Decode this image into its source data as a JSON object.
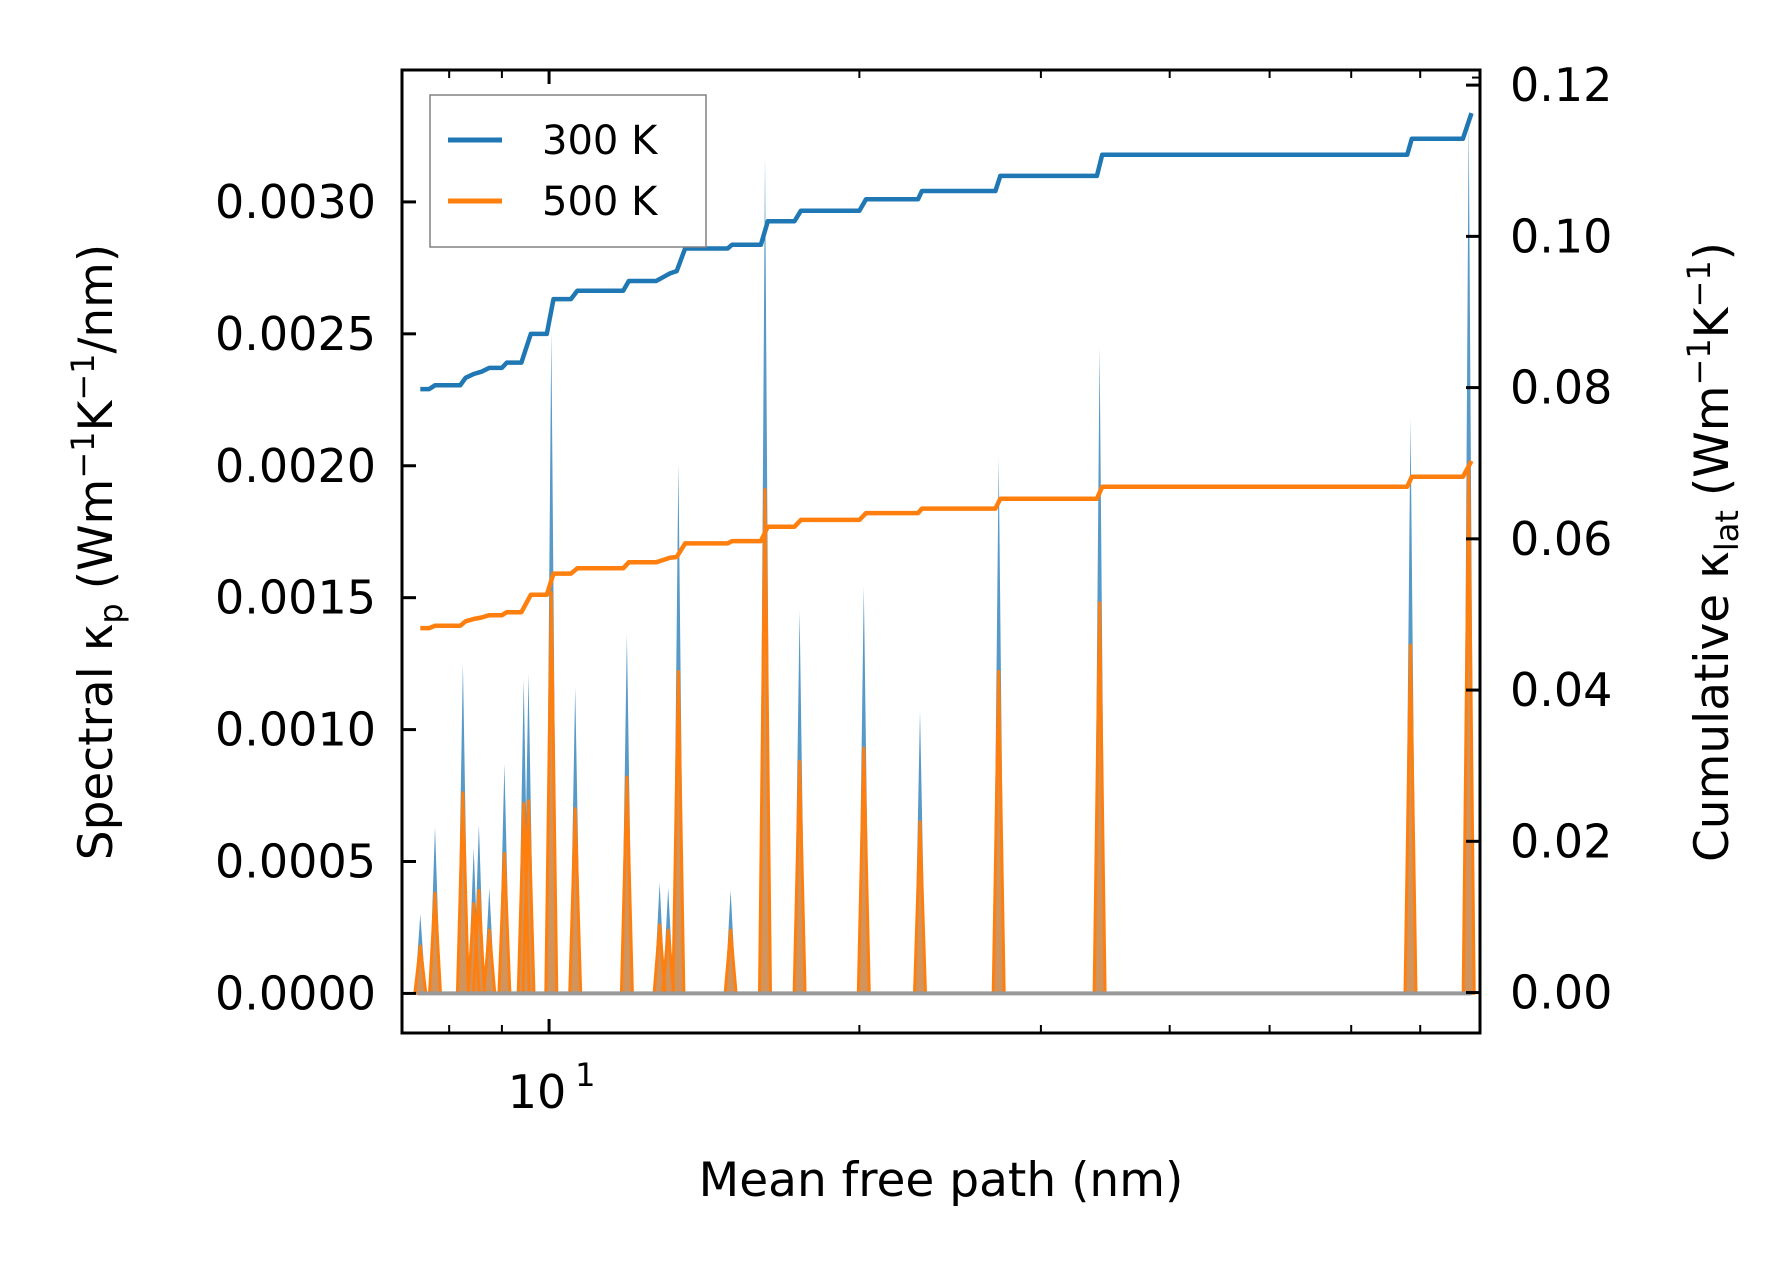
{
  "chart_data": {
    "type": "line",
    "xscale": "log",
    "xlabel": "Mean free path (nm)",
    "xlim": [
      7.2,
      80
    ],
    "x_tick_labels": [
      {
        "value": 10,
        "label": "10",
        "exponent": "1"
      }
    ],
    "ylabel_left": {
      "prefix": "Spectral κ",
      "subscript": "p",
      "units": "(Wm",
      "sup1": "−1",
      "mid": "K",
      "sup2": "−1",
      "suffix": "/nm)"
    },
    "ylabel_right": {
      "prefix": "Cumulative κ",
      "subscript": "lat",
      "units": "(Wm",
      "sup1": "−1",
      "mid": "K",
      "sup2": "−1",
      "suffix": ")"
    },
    "ylim_left": [
      -0.00015,
      0.0035
    ],
    "ylim_right": [
      -0.00535,
      0.122
    ],
    "left_ticks": [
      0.0,
      0.0005,
      0.001,
      0.0015,
      0.002,
      0.0025,
      0.003
    ],
    "left_tick_labels": [
      "0.0000",
      "0.0005",
      "0.0010",
      "0.0015",
      "0.0020",
      "0.0025",
      "0.0030"
    ],
    "right_ticks": [
      0.0,
      0.02,
      0.04,
      0.06,
      0.08,
      0.1,
      0.12
    ],
    "right_tick_labels": [
      "0.00",
      "0.02",
      "0.04",
      "0.06",
      "0.08",
      "0.10",
      "0.12"
    ],
    "legend": {
      "position": "top-left",
      "entries": [
        "300 K",
        "500 K"
      ]
    },
    "colors": {
      "300 K": "#1f77b4",
      "500 K": "#ff7f0e",
      "fill_300": "#1f77b4",
      "fill_500": "#e8934a"
    },
    "spectral_peaks": [
      {
        "x": 7.5,
        "v300": 0.0003,
        "v500": 0.00018
      },
      {
        "x": 7.75,
        "v300": 0.00063,
        "v500": 0.00038
      },
      {
        "x": 8.25,
        "v300": 0.00125,
        "v500": 0.00076
      },
      {
        "x": 8.45,
        "v300": 0.00055,
        "v500": 0.00034
      },
      {
        "x": 8.55,
        "v300": 0.00064,
        "v500": 0.00039
      },
      {
        "x": 8.75,
        "v300": 0.0004,
        "v500": 0.00024
      },
      {
        "x": 9.05,
        "v300": 0.00087,
        "v500": 0.00053
      },
      {
        "x": 9.45,
        "v300": 0.00119,
        "v500": 0.00072
      },
      {
        "x": 9.55,
        "v300": 0.00121,
        "v500": 0.00073
      },
      {
        "x": 10.05,
        "v300": 0.00251,
        "v500": 0.00152
      },
      {
        "x": 10.6,
        "v300": 0.00116,
        "v500": 0.0007
      },
      {
        "x": 11.9,
        "v300": 0.00136,
        "v500": 0.00082
      },
      {
        "x": 12.8,
        "v300": 0.00042,
        "v500": 0.00026
      },
      {
        "x": 13.05,
        "v300": 0.0004,
        "v500": 0.00024
      },
      {
        "x": 13.35,
        "v300": 0.00201,
        "v500": 0.00122
      },
      {
        "x": 15.0,
        "v300": 0.00039,
        "v500": 0.00024
      },
      {
        "x": 16.2,
        "v300": 0.00317,
        "v500": 0.00191
      },
      {
        "x": 17.5,
        "v300": 0.00145,
        "v500": 0.00088
      },
      {
        "x": 20.2,
        "v300": 0.00154,
        "v500": 0.00093
      },
      {
        "x": 22.9,
        "v300": 0.00107,
        "v500": 0.00065
      },
      {
        "x": 27.3,
        "v300": 0.00203,
        "v500": 0.00122
      },
      {
        "x": 34.2,
        "v300": 0.00245,
        "v500": 0.00148
      },
      {
        "x": 68.5,
        "v300": 0.00218,
        "v500": 0.00132
      },
      {
        "x": 78.0,
        "v300": 0.00332,
        "v500": 0.002
      }
    ],
    "cumulative": {
      "300 K": [
        [
          7.5,
          0.0798
        ],
        [
          7.65,
          0.0798
        ],
        [
          7.75,
          0.0803
        ],
        [
          8.2,
          0.0803
        ],
        [
          8.3,
          0.0813
        ],
        [
          8.45,
          0.0818
        ],
        [
          8.6,
          0.0821
        ],
        [
          8.75,
          0.0826
        ],
        [
          9.0,
          0.0826
        ],
        [
          9.1,
          0.0833
        ],
        [
          9.4,
          0.0833
        ],
        [
          9.6,
          0.0871
        ],
        [
          9.95,
          0.0871
        ],
        [
          10.1,
          0.0917
        ],
        [
          10.5,
          0.0917
        ],
        [
          10.65,
          0.0928
        ],
        [
          11.8,
          0.0928
        ],
        [
          11.95,
          0.0941
        ],
        [
          12.7,
          0.0941
        ],
        [
          12.9,
          0.0946
        ],
        [
          13.1,
          0.0951
        ],
        [
          13.3,
          0.0954
        ],
        [
          13.55,
          0.0984
        ],
        [
          14.9,
          0.0984
        ],
        [
          15.05,
          0.0989
        ],
        [
          16.05,
          0.0989
        ],
        [
          16.3,
          0.102
        ],
        [
          17.3,
          0.102
        ],
        [
          17.55,
          0.1034
        ],
        [
          20.0,
          0.1034
        ],
        [
          20.3,
          0.1049
        ],
        [
          22.8,
          0.1049
        ],
        [
          23.0,
          0.106
        ],
        [
          27.1,
          0.106
        ],
        [
          27.4,
          0.108
        ],
        [
          34.0,
          0.108
        ],
        [
          34.4,
          0.1108
        ],
        [
          68.0,
          0.1108
        ],
        [
          68.7,
          0.1129
        ],
        [
          77.0,
          0.1129
        ],
        [
          78.5,
          0.1163
        ]
      ],
      "500 K": [
        [
          7.5,
          0.0482
        ],
        [
          7.65,
          0.0482
        ],
        [
          7.75,
          0.0485
        ],
        [
          8.2,
          0.0485
        ],
        [
          8.3,
          0.0491
        ],
        [
          8.45,
          0.0494
        ],
        [
          8.6,
          0.0496
        ],
        [
          8.75,
          0.0499
        ],
        [
          9.0,
          0.0499
        ],
        [
          9.1,
          0.0503
        ],
        [
          9.4,
          0.0503
        ],
        [
          9.6,
          0.0526
        ],
        [
          9.95,
          0.0526
        ],
        [
          10.1,
          0.0554
        ],
        [
          10.5,
          0.0554
        ],
        [
          10.65,
          0.0561
        ],
        [
          11.8,
          0.0561
        ],
        [
          11.95,
          0.0569
        ],
        [
          12.7,
          0.0569
        ],
        [
          12.9,
          0.0572
        ],
        [
          13.1,
          0.0575
        ],
        [
          13.3,
          0.0576
        ],
        [
          13.55,
          0.0594
        ],
        [
          14.9,
          0.0594
        ],
        [
          15.05,
          0.0597
        ],
        [
          16.05,
          0.0597
        ],
        [
          16.3,
          0.0616
        ],
        [
          17.3,
          0.0616
        ],
        [
          17.55,
          0.0625
        ],
        [
          20.0,
          0.0625
        ],
        [
          20.3,
          0.0634
        ],
        [
          22.8,
          0.0634
        ],
        [
          23.0,
          0.064
        ],
        [
          27.1,
          0.064
        ],
        [
          27.4,
          0.0653
        ],
        [
          34.0,
          0.0653
        ],
        [
          34.4,
          0.0669
        ],
        [
          68.0,
          0.0669
        ],
        [
          68.7,
          0.0682
        ],
        [
          77.0,
          0.0682
        ],
        [
          78.5,
          0.0703
        ]
      ]
    }
  }
}
